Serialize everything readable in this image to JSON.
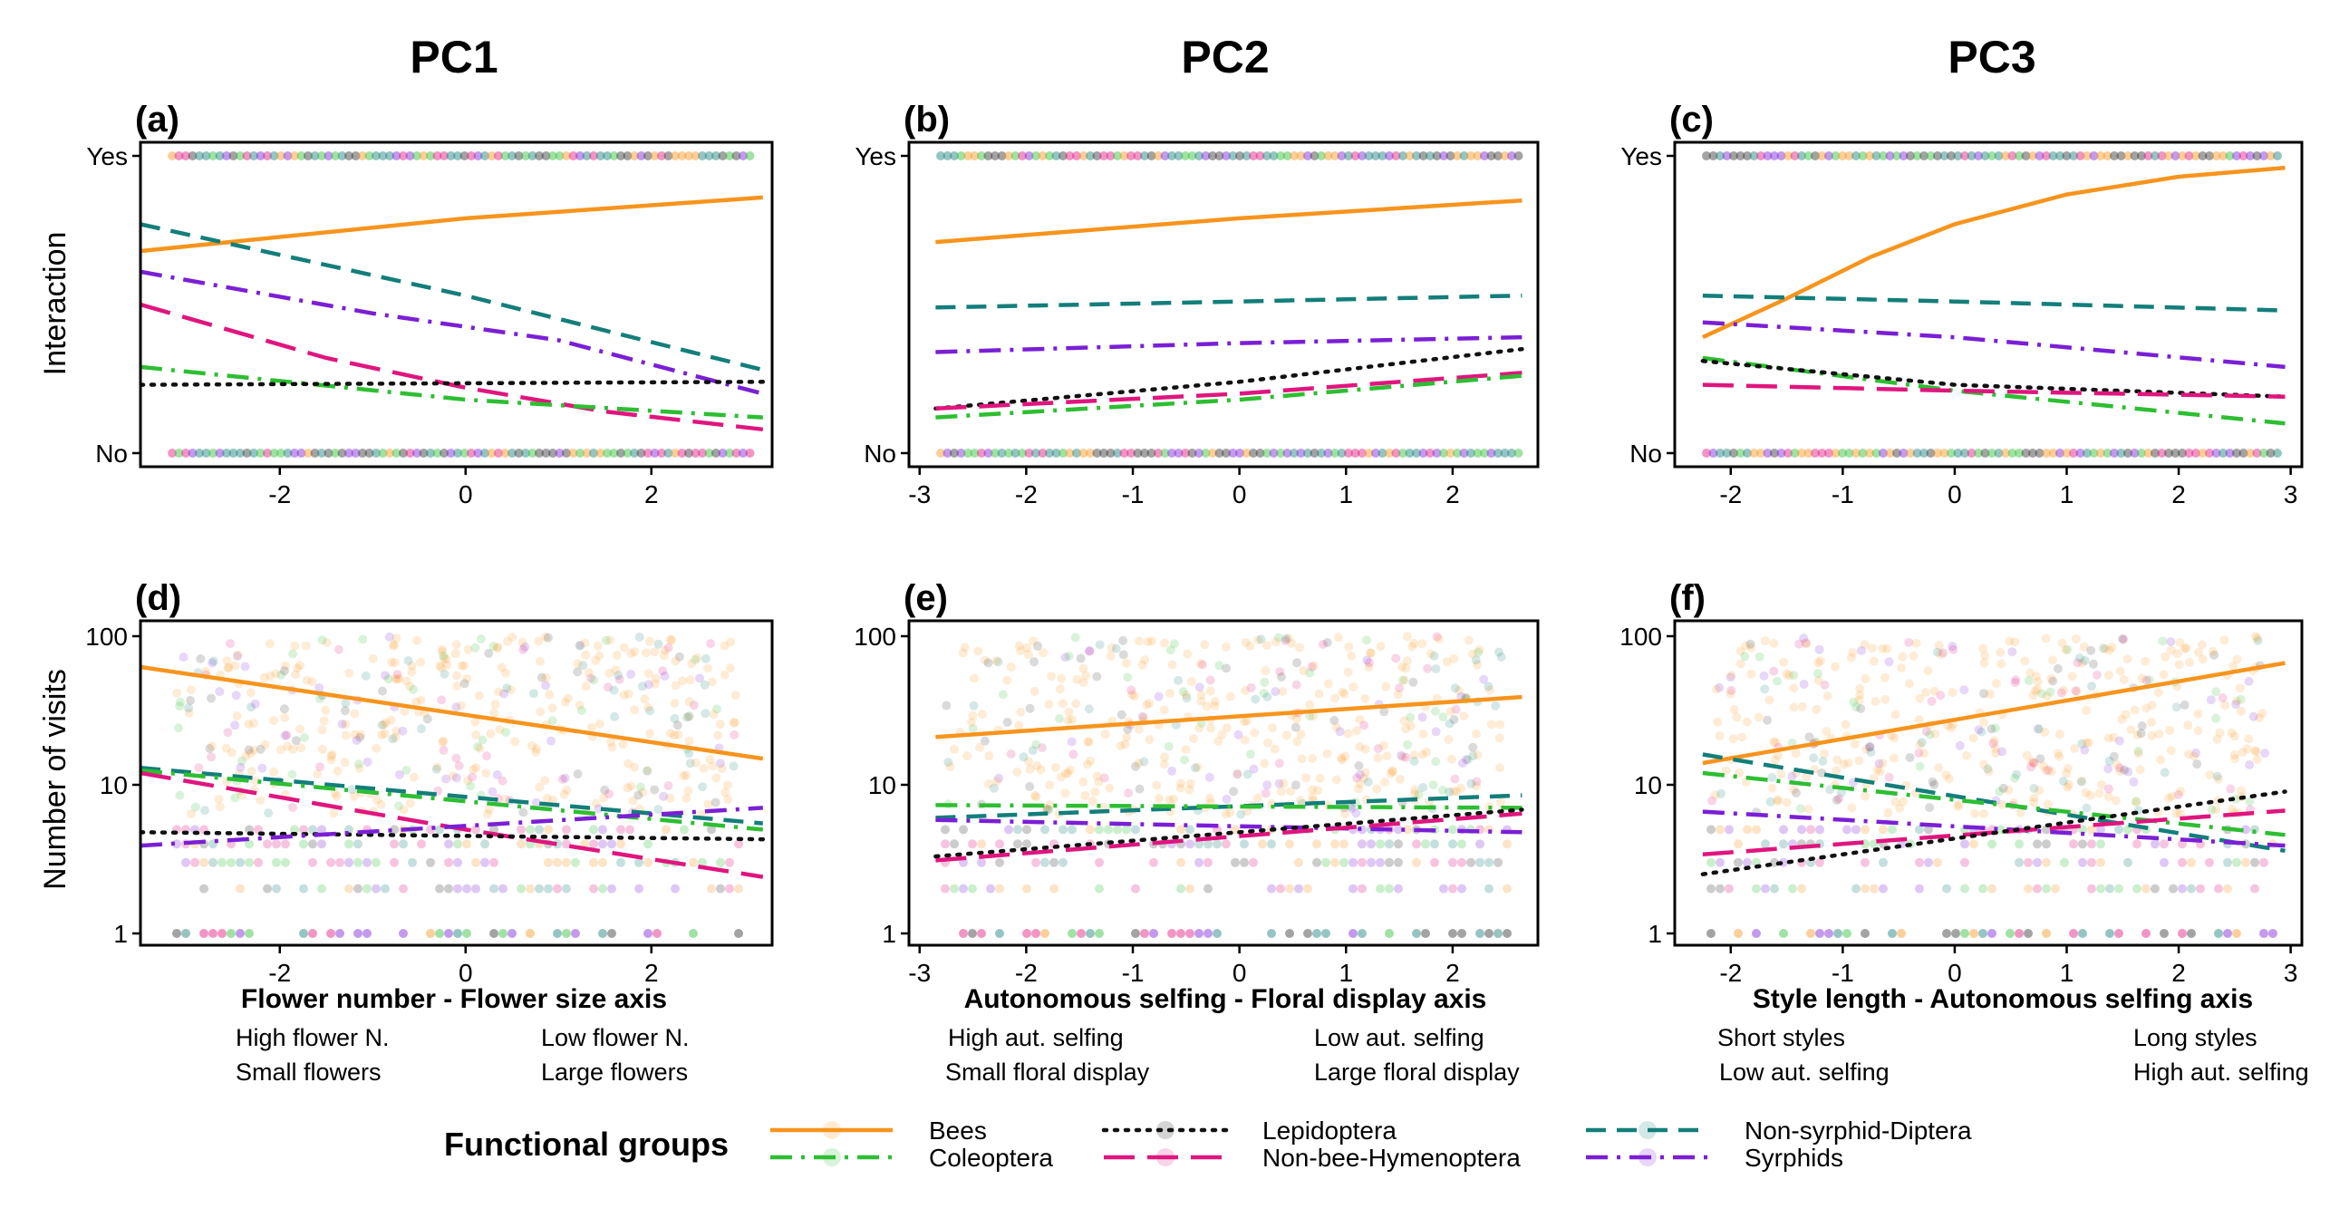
{
  "colors": {
    "Bees": "#F7941D",
    "Coleoptera": "#2DBE32",
    "Lepidoptera": "#111111",
    "Non-bee-Hymenoptera": "#E0157E",
    "Non-syrphid-Diptera": "#137E7A",
    "Syrphids": "#7A1FD6"
  },
  "column_titles": [
    "PC1",
    "PC2",
    "PC3"
  ],
  "y_titles": {
    "top": "Interaction",
    "bottom": "Number of visits"
  },
  "axis_titles": [
    "Flower number - Flower size axis",
    "Autonomous selfing - Floral display axis",
    "Style length - Autonomous selfing axis"
  ],
  "axis_extremes": [
    {
      "left": [
        "High flower N.",
        "Small flowers"
      ],
      "right": [
        "Low flower N.",
        "Large flowers"
      ]
    },
    {
      "left": [
        "High aut. selfing",
        "Small floral display"
      ],
      "right": [
        "Low aut. selfing",
        "Large floral display"
      ]
    },
    {
      "left": [
        "Short styles",
        "Low aut. selfing"
      ],
      "right": [
        "Long styles",
        "High aut. selfing"
      ]
    }
  ],
  "legend": {
    "title": "Functional groups",
    "items": [
      {
        "name": "Bees",
        "style": "solid"
      },
      {
        "name": "Coleoptera",
        "style": "dotdash"
      },
      {
        "name": "Lepidoptera",
        "style": "dotted"
      },
      {
        "name": "Non-bee-Hymenoptera",
        "style": "longdash"
      },
      {
        "name": "Non-syrphid-Diptera",
        "style": "dashed"
      },
      {
        "name": "Syrphids",
        "style": "dotdash"
      }
    ]
  },
  "chart_data": [
    {
      "panel": "(a)",
      "column": "PC1",
      "type": "line",
      "ylabel": "Interaction",
      "y_scale": "probability",
      "y_ticks": [
        {
          "label": "No",
          "value": 0
        },
        {
          "label": "Yes",
          "value": 1
        }
      ],
      "xlim": [
        -3.5,
        3.3
      ],
      "x_ticks": [
        -2,
        0,
        2
      ],
      "ylim": [
        -0.05,
        1.05
      ],
      "series": [
        {
          "name": "Bees",
          "points": [
            [
              -3.5,
              0.68
            ],
            [
              0,
              0.79
            ],
            [
              3.2,
              0.86
            ]
          ]
        },
        {
          "name": "Non-syrphid-Diptera",
          "points": [
            [
              -3.5,
              0.77
            ],
            [
              0,
              0.53
            ],
            [
              3.2,
              0.28
            ]
          ]
        },
        {
          "name": "Syrphids",
          "points": [
            [
              -3.5,
              0.61
            ],
            [
              -1,
              0.47
            ],
            [
              1,
              0.38
            ],
            [
              3.2,
              0.2
            ]
          ]
        },
        {
          "name": "Non-bee-Hymenoptera",
          "points": [
            [
              -3.5,
              0.5
            ],
            [
              -1.5,
              0.32
            ],
            [
              0,
              0.22
            ],
            [
              1.5,
              0.14
            ],
            [
              3.2,
              0.08
            ]
          ]
        },
        {
          "name": "Coleoptera",
          "points": [
            [
              -3.5,
              0.29
            ],
            [
              0,
              0.18
            ],
            [
              3.2,
              0.12
            ]
          ]
        },
        {
          "name": "Lepidoptera",
          "points": [
            [
              -3.5,
              0.23
            ],
            [
              0,
              0.235
            ],
            [
              3.2,
              0.24
            ]
          ]
        }
      ]
    },
    {
      "panel": "(b)",
      "column": "PC2",
      "type": "line",
      "ylabel": "Interaction",
      "y_scale": "probability",
      "y_ticks": [
        {
          "label": "No",
          "value": 0
        },
        {
          "label": "Yes",
          "value": 1
        }
      ],
      "xlim": [
        -3.1,
        2.8
      ],
      "x_ticks": [
        -3,
        -2,
        -1,
        0,
        1,
        2
      ],
      "ylim": [
        -0.05,
        1.05
      ],
      "series": [
        {
          "name": "Bees",
          "points": [
            [
              -2.85,
              0.71
            ],
            [
              0,
              0.79
            ],
            [
              2.65,
              0.85
            ]
          ]
        },
        {
          "name": "Non-syrphid-Diptera",
          "points": [
            [
              -2.85,
              0.49
            ],
            [
              0,
              0.51
            ],
            [
              2.65,
              0.53
            ]
          ]
        },
        {
          "name": "Syrphids",
          "points": [
            [
              -2.85,
              0.34
            ],
            [
              0,
              0.37
            ],
            [
              2.65,
              0.39
            ]
          ]
        },
        {
          "name": "Lepidoptera",
          "points": [
            [
              -2.85,
              0.15
            ],
            [
              0,
              0.24
            ],
            [
              2.65,
              0.35
            ]
          ]
        },
        {
          "name": "Non-bee-Hymenoptera",
          "points": [
            [
              -2.85,
              0.15
            ],
            [
              0,
              0.2
            ],
            [
              2.65,
              0.27
            ]
          ]
        },
        {
          "name": "Coleoptera",
          "points": [
            [
              -2.85,
              0.12
            ],
            [
              0,
              0.18
            ],
            [
              2.65,
              0.26
            ]
          ]
        }
      ]
    },
    {
      "panel": "(c)",
      "column": "PC3",
      "type": "line",
      "ylabel": "Interaction",
      "y_scale": "probability",
      "y_ticks": [
        {
          "label": "No",
          "value": 0
        },
        {
          "label": "Yes",
          "value": 1
        }
      ],
      "xlim": [
        -2.5,
        3.1
      ],
      "x_ticks": [
        -2,
        -1,
        0,
        1,
        2,
        3
      ],
      "ylim": [
        -0.05,
        1.05
      ],
      "series": [
        {
          "name": "Bees",
          "points": [
            [
              -2.25,
              0.39
            ],
            [
              -1.5,
              0.52
            ],
            [
              -0.75,
              0.66
            ],
            [
              0,
              0.77
            ],
            [
              1,
              0.87
            ],
            [
              2,
              0.93
            ],
            [
              2.95,
              0.96
            ]
          ]
        },
        {
          "name": "Non-syrphid-Diptera",
          "points": [
            [
              -2.25,
              0.53
            ],
            [
              0,
              0.51
            ],
            [
              2.95,
              0.48
            ]
          ]
        },
        {
          "name": "Syrphids",
          "points": [
            [
              -2.25,
              0.44
            ],
            [
              0,
              0.39
            ],
            [
              2.95,
              0.29
            ]
          ]
        },
        {
          "name": "Coleoptera",
          "points": [
            [
              -2.25,
              0.32
            ],
            [
              0,
              0.21
            ],
            [
              2.95,
              0.1
            ]
          ]
        },
        {
          "name": "Lepidoptera",
          "points": [
            [
              -2.25,
              0.31
            ],
            [
              0,
              0.23
            ],
            [
              2.95,
              0.19
            ]
          ]
        },
        {
          "name": "Non-bee-Hymenoptera",
          "points": [
            [
              -2.25,
              0.23
            ],
            [
              0,
              0.21
            ],
            [
              2.95,
              0.19
            ]
          ]
        }
      ]
    },
    {
      "panel": "(d)",
      "column": "PC1",
      "type": "line",
      "ylabel": "Number of visits",
      "y_scale": "log10",
      "y_ticks": [
        {
          "label": "1",
          "value": 1
        },
        {
          "label": "10",
          "value": 10
        },
        {
          "label": "100",
          "value": 100
        }
      ],
      "xlim": [
        -3.5,
        3.3
      ],
      "x_ticks": [
        -2,
        0,
        2
      ],
      "ylim": [
        0.8,
        130
      ],
      "series": [
        {
          "name": "Bees",
          "points": [
            [
              -3.5,
              62
            ],
            [
              3.2,
              15
            ]
          ]
        },
        {
          "name": "Non-syrphid-Diptera",
          "points": [
            [
              -3.5,
              13
            ],
            [
              3.2,
              5.5
            ]
          ]
        },
        {
          "name": "Coleoptera",
          "points": [
            [
              -3.5,
              12.5
            ],
            [
              3.2,
              5
            ]
          ]
        },
        {
          "name": "Non-bee-Hymenoptera",
          "points": [
            [
              -3.5,
              12
            ],
            [
              0,
              5
            ],
            [
              3.2,
              2.4
            ]
          ]
        },
        {
          "name": "Lepidoptera",
          "points": [
            [
              -3.5,
              4.8
            ],
            [
              3.2,
              4.3
            ]
          ]
        },
        {
          "name": "Syrphids",
          "points": [
            [
              -3.5,
              3.9
            ],
            [
              3.2,
              7
            ]
          ]
        }
      ]
    },
    {
      "panel": "(e)",
      "column": "PC2",
      "type": "line",
      "ylabel": "Number of visits",
      "y_scale": "log10",
      "y_ticks": [
        {
          "label": "1",
          "value": 1
        },
        {
          "label": "10",
          "value": 10
        },
        {
          "label": "100",
          "value": 100
        }
      ],
      "xlim": [
        -3.1,
        2.8
      ],
      "x_ticks": [
        -3,
        -2,
        -1,
        0,
        1,
        2
      ],
      "ylim": [
        0.8,
        130
      ],
      "series": [
        {
          "name": "Bees",
          "points": [
            [
              -2.85,
              21
            ],
            [
              2.65,
              39
            ]
          ]
        },
        {
          "name": "Non-syrphid-Diptera",
          "points": [
            [
              -2.85,
              6
            ],
            [
              2.65,
              8.5
            ]
          ]
        },
        {
          "name": "Coleoptera",
          "points": [
            [
              -2.85,
              7.3
            ],
            [
              2.65,
              7
            ]
          ]
        },
        {
          "name": "Syrphids",
          "points": [
            [
              -2.85,
              5.8
            ],
            [
              2.65,
              4.8
            ]
          ]
        },
        {
          "name": "Lepidoptera",
          "points": [
            [
              -2.85,
              3.3
            ],
            [
              2.65,
              6.8
            ]
          ]
        },
        {
          "name": "Non-bee-Hymenoptera",
          "points": [
            [
              -2.85,
              3.1
            ],
            [
              2.65,
              6.4
            ]
          ]
        }
      ]
    },
    {
      "panel": "(f)",
      "column": "PC3",
      "type": "line",
      "ylabel": "Number of visits",
      "y_scale": "log10",
      "y_ticks": [
        {
          "label": "1",
          "value": 1
        },
        {
          "label": "10",
          "value": 10
        },
        {
          "label": "100",
          "value": 100
        }
      ],
      "xlim": [
        -2.5,
        3.1
      ],
      "x_ticks": [
        -2,
        -1,
        0,
        1,
        2,
        3
      ],
      "ylim": [
        0.8,
        130
      ],
      "series": [
        {
          "name": "Bees",
          "points": [
            [
              -2.25,
              14
            ],
            [
              2.95,
              66
            ]
          ]
        },
        {
          "name": "Non-syrphid-Diptera",
          "points": [
            [
              -2.25,
              16
            ],
            [
              2.95,
              3.6
            ]
          ]
        },
        {
          "name": "Coleoptera",
          "points": [
            [
              -2.25,
              12
            ],
            [
              2.95,
              4.6
            ]
          ]
        },
        {
          "name": "Syrphids",
          "points": [
            [
              -2.25,
              6.6
            ],
            [
              2.95,
              3.9
            ]
          ]
        },
        {
          "name": "Non-bee-Hymenoptera",
          "points": [
            [
              -2.25,
              3.4
            ],
            [
              2.95,
              6.7
            ]
          ]
        },
        {
          "name": "Lepidoptera",
          "points": [
            [
              -2.25,
              2.5
            ],
            [
              2.95,
              9
            ]
          ]
        }
      ]
    }
  ]
}
